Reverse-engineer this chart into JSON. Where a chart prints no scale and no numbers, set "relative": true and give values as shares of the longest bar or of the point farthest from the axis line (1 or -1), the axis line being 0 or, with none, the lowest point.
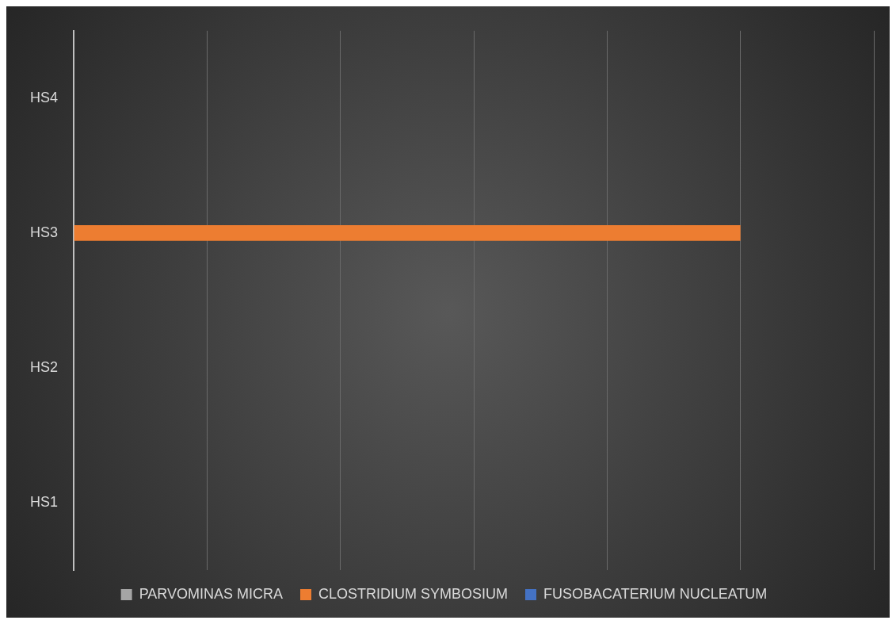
{
  "chart_data": {
    "type": "bar",
    "orientation": "horizontal",
    "relative": true,
    "categories": [
      "HS4",
      "HS3",
      "HS2",
      "HS1"
    ],
    "series": [
      {
        "name": "PARVOMINAS MICRA",
        "color": "#a5a5a5",
        "values": [
          0,
          0,
          0,
          0
        ]
      },
      {
        "name": "CLOSTRIDIUM SYMBOSIUM",
        "color": "#ed7d31",
        "values": [
          0,
          1,
          0,
          0
        ]
      },
      {
        "name": "FUSOBACATERIUM NUCLEATUM",
        "color": "#4472c4",
        "values": [
          0,
          0,
          0,
          0
        ]
      }
    ],
    "grid": "x",
    "legend": "bottom"
  }
}
